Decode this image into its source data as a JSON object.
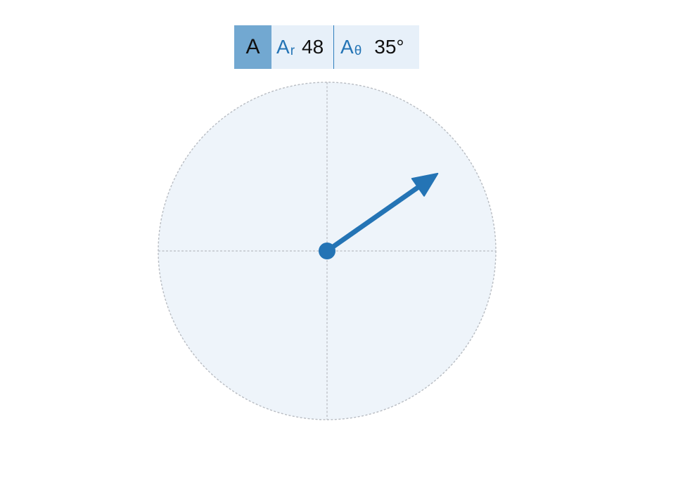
{
  "vector": {
    "name": "A",
    "r_symbol": "A",
    "r_subscript": "r",
    "r_value": "48",
    "theta_symbol": "A",
    "theta_subscript": "θ",
    "theta_value": "35°"
  },
  "diagram": {
    "magnitude": 48,
    "magnitude_max": 60,
    "angle_deg": 35,
    "vector_color": "#2474b5",
    "disc_fill": "#eef4fa",
    "guide_color": "#b8bcc2"
  }
}
